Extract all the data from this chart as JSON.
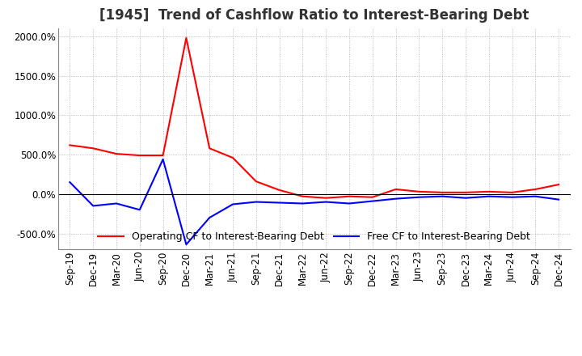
{
  "title": "[1945]  Trend of Cashflow Ratio to Interest-Bearing Debt",
  "ylim": [
    -700,
    2100
  ],
  "yticks": [
    -500,
    0,
    500,
    1000,
    1500,
    2000
  ],
  "ytick_labels": [
    "-500.0%",
    "0.0%",
    "500.0%",
    "1000.0%",
    "1500.0%",
    "2000.0%"
  ],
  "x_labels": [
    "Sep-19",
    "Dec-19",
    "Mar-20",
    "Jun-20",
    "Sep-20",
    "Dec-20",
    "Mar-21",
    "Jun-21",
    "Sep-21",
    "Dec-21",
    "Mar-22",
    "Jun-22",
    "Sep-22",
    "Dec-22",
    "Mar-23",
    "Jun-23",
    "Sep-23",
    "Dec-23",
    "Mar-24",
    "Jun-24",
    "Sep-24",
    "Dec-24"
  ],
  "operating_cf": [
    620,
    580,
    510,
    490,
    490,
    1980,
    580,
    460,
    160,
    50,
    -30,
    -50,
    -30,
    -40,
    60,
    30,
    20,
    20,
    30,
    20,
    60,
    120
  ],
  "free_cf": [
    150,
    -150,
    -120,
    -200,
    440,
    -640,
    -300,
    -130,
    -100,
    -110,
    -120,
    -100,
    -120,
    -90,
    -60,
    -40,
    -30,
    -50,
    -30,
    -40,
    -30,
    -70
  ],
  "operating_color": "#ff0000",
  "free_color": "#0000ff",
  "background_color": "#ffffff",
  "grid_color": "#aaaaaa",
  "title_fontsize": 12,
  "tick_fontsize": 8.5,
  "legend_fontsize": 9
}
